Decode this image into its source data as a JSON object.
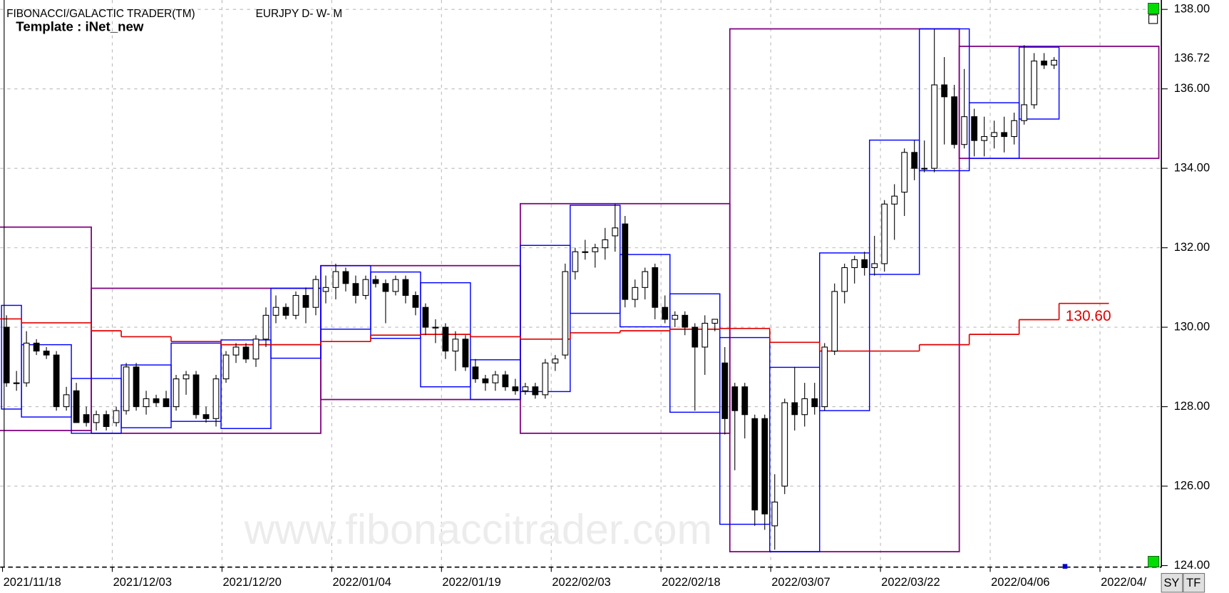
{
  "chart_data": {
    "type": "candlestick",
    "title": "FIBONACCI/GALACTIC TRADER(TM)",
    "symbol": "EURJPY D- W- M",
    "template": "Template : iNet_new",
    "watermark": "www.fibonaccitrader.com",
    "buttons": [
      "SY",
      "TF"
    ],
    "grid": true,
    "up_color": "#ffffff",
    "down_color": "#000000",
    "ylim": [
      124,
      138
    ],
    "yticks": [
      {
        "value": 124,
        "label": "124.00"
      },
      {
        "value": 126,
        "label": "126.00"
      },
      {
        "value": 128,
        "label": "128.00"
      },
      {
        "value": 130,
        "label": "130.00"
      },
      {
        "value": 132,
        "label": "132.00"
      },
      {
        "value": 134,
        "label": "134.00"
      },
      {
        "value": 136,
        "label": "136.00"
      },
      {
        "value": 138,
        "label": "138.00"
      }
    ],
    "xlim": [
      -0.63,
      115.6
    ],
    "xticks": [
      {
        "value": -0.4,
        "label": "2021/11/18"
      },
      {
        "value": 10.6,
        "label": "2021/12/03"
      },
      {
        "value": 21.6,
        "label": "2021/12/20"
      },
      {
        "value": 32.6,
        "label": "2022/01/04"
      },
      {
        "value": 43.6,
        "label": "2022/01/19"
      },
      {
        "value": 54.6,
        "label": "2022/02/03"
      },
      {
        "value": 65.6,
        "label": "2022/02/18"
      },
      {
        "value": 76.6,
        "label": "2022/03/07"
      },
      {
        "value": 87.6,
        "label": "2022/03/22"
      },
      {
        "value": 98.6,
        "label": "2022/04/06"
      },
      {
        "value": 109.6,
        "label": "2022/04/"
      }
    ],
    "open": [
      130.0,
      128.6,
      128.6,
      129.6,
      129.4,
      129.3,
      128.0,
      128.4,
      127.8,
      127.6,
      127.8,
      127.6,
      127.9,
      129.0,
      128.0,
      128.2,
      128.2,
      128.0,
      128.7,
      128.8,
      127.8,
      127.7,
      128.7,
      129.3,
      129.5,
      129.2,
      129.7,
      130.3,
      130.5,
      130.3,
      130.8,
      130.5,
      130.9,
      131.0,
      131.4,
      131.1,
      130.8,
      131.2,
      131.1,
      130.9,
      131.2,
      130.8,
      130.5,
      130.0,
      130.0,
      129.4,
      129.7,
      129.0,
      128.7,
      128.6,
      128.8,
      128.5,
      128.4,
      128.5,
      128.3,
      129.1,
      129.3,
      131.4,
      131.9,
      131.9,
      132.0,
      132.3,
      132.6,
      130.7,
      131.0,
      131.5,
      130.5,
      130.2,
      130.3,
      130.0,
      129.5,
      130.1,
      129.1,
      128.5,
      128.5,
      127.7,
      127.7,
      125.0,
      126.0,
      128.1,
      127.8,
      128.2,
      128.0,
      129.4,
      130.9,
      131.5,
      131.7,
      131.5,
      131.6,
      133.1,
      133.4,
      134.4,
      134.0,
      134.0,
      136.1,
      135.8,
      134.6,
      135.3,
      134.7,
      134.8,
      134.9,
      134.8,
      135.2,
      135.6,
      136.7,
      136.6
    ],
    "high": [
      130.3,
      128.9,
      129.9,
      129.7,
      129.5,
      129.4,
      128.5,
      128.6,
      128.0,
      127.9,
      127.9,
      128.0,
      129.1,
      129.1,
      128.4,
      128.3,
      128.4,
      128.8,
      128.9,
      128.9,
      128.0,
      128.8,
      129.4,
      129.6,
      129.6,
      129.8,
      130.5,
      130.8,
      130.6,
      130.9,
      131.0,
      131.3,
      131.3,
      131.6,
      131.5,
      131.3,
      131.3,
      131.3,
      131.2,
      131.3,
      131.3,
      130.9,
      130.6,
      130.2,
      130.1,
      129.9,
      129.8,
      129.2,
      128.8,
      128.9,
      128.9,
      128.7,
      128.6,
      128.6,
      129.2,
      129.3,
      131.6,
      132.0,
      132.2,
      132.1,
      132.5,
      133.1,
      132.8,
      131.2,
      131.5,
      131.6,
      130.8,
      130.4,
      130.4,
      130.1,
      130.3,
      130.2,
      129.5,
      128.6,
      128.6,
      127.8,
      127.8,
      126.3,
      128.2,
      129.0,
      128.6,
      128.6,
      129.6,
      131.1,
      131.6,
      131.8,
      131.9,
      132.3,
      133.2,
      133.6,
      134.5,
      134.7,
      134.7,
      137.5,
      136.8,
      136.1,
      136.5,
      135.5,
      135.3,
      135.2,
      135.3,
      135.4,
      137.1,
      136.9,
      136.9,
      136.8
    ],
    "low": [
      128.5,
      128.4,
      128.5,
      129.3,
      129.2,
      127.9,
      127.9,
      127.6,
      127.5,
      127.4,
      127.4,
      127.5,
      127.8,
      127.9,
      127.8,
      128.0,
      128.0,
      127.9,
      128.3,
      127.7,
      127.6,
      127.5,
      128.6,
      129.1,
      129.1,
      129.0,
      129.5,
      130.1,
      130.2,
      130.2,
      130.1,
      130.3,
      130.6,
      130.7,
      130.9,
      130.6,
      130.7,
      131.0,
      130.1,
      130.8,
      130.6,
      130.3,
      129.8,
      129.6,
      129.2,
      128.9,
      128.9,
      128.6,
      128.4,
      128.4,
      128.4,
      128.3,
      128.3,
      128.2,
      128.2,
      128.9,
      129.2,
      131.2,
      131.7,
      131.5,
      131.7,
      131.9,
      130.5,
      130.5,
      130.7,
      130.2,
      130.1,
      130.0,
      129.8,
      127.9,
      128.8,
      129.9,
      127.3,
      126.4,
      127.2,
      125.0,
      124.9,
      124.4,
      125.8,
      127.4,
      127.5,
      127.8,
      127.9,
      129.3,
      130.6,
      131.1,
      131.3,
      131.3,
      131.4,
      132.2,
      132.8,
      133.7,
      133.9,
      133.9,
      134.6,
      134.5,
      134.5,
      134.3,
      134.3,
      134.5,
      134.4,
      134.6,
      135.1,
      135.5,
      136.5,
      136.5
    ],
    "close": [
      128.6,
      128.6,
      129.6,
      129.4,
      129.3,
      128.0,
      128.3,
      127.6,
      127.6,
      127.8,
      127.5,
      127.9,
      129.0,
      128.0,
      128.2,
      128.1,
      128.0,
      128.7,
      128.8,
      127.8,
      127.7,
      128.7,
      129.3,
      129.5,
      129.2,
      129.7,
      130.3,
      130.5,
      130.3,
      130.8,
      130.5,
      131.2,
      131.0,
      131.4,
      131.1,
      130.8,
      131.2,
      131.1,
      130.9,
      131.2,
      130.8,
      130.5,
      130.0,
      130.0,
      129.4,
      129.7,
      129.0,
      128.7,
      128.6,
      128.8,
      128.5,
      128.4,
      128.5,
      128.3,
      129.1,
      129.2,
      131.4,
      131.9,
      131.9,
      132.0,
      132.2,
      132.5,
      130.7,
      131.0,
      131.4,
      130.5,
      130.2,
      130.3,
      130.0,
      129.5,
      130.1,
      130.2,
      127.7,
      127.9,
      127.8,
      125.4,
      125.3,
      125.6,
      128.1,
      127.8,
      128.2,
      128.0,
      129.5,
      130.9,
      131.5,
      131.7,
      131.5,
      131.6,
      133.1,
      133.3,
      134.4,
      134.0,
      134.0,
      136.1,
      135.8,
      134.6,
      135.3,
      134.7,
      134.8,
      134.9,
      134.8,
      135.2,
      135.6,
      136.7,
      136.6,
      136.72
    ],
    "weekly_ranges": {
      "color": "#0000ff",
      "start": [
        0,
        2,
        7,
        12,
        17,
        22,
        27,
        32,
        37,
        42,
        47,
        52,
        57,
        62,
        67,
        72,
        77,
        82,
        87,
        92,
        97,
        102
      ],
      "end": [
        1,
        6,
        11,
        16,
        21,
        26,
        31,
        36,
        41,
        46,
        51,
        56,
        61,
        66,
        71,
        76,
        81,
        86,
        91,
        96,
        101,
        105
      ],
      "high": [
        130.55,
        129.56,
        128.71,
        129.05,
        129.6,
        129.68,
        130.98,
        131.55,
        131.39,
        131.12,
        129.18,
        132.06,
        133.07,
        131.83,
        130.84,
        129.74,
        128.99,
        131.87,
        134.71,
        137.51,
        135.65,
        137.05
      ],
      "low": [
        127.94,
        127.74,
        127.33,
        127.47,
        127.63,
        127.45,
        129.22,
        129.95,
        129.72,
        128.5,
        128.18,
        128.38,
        130.35,
        130.01,
        127.86,
        125.04,
        124.35,
        127.9,
        131.33,
        133.94,
        134.25,
        135.24
      ]
    },
    "monthly_ranges": {
      "color": "#800080",
      "start": [
        -1,
        9,
        32,
        52,
        73,
        96
      ],
      "end": [
        8,
        31,
        51,
        72,
        95,
        115
      ],
      "high": [
        132.52,
        130.98,
        131.55,
        133.11,
        137.51,
        137.07
      ],
      "low": [
        127.4,
        127.33,
        128.18,
        127.33,
        124.35,
        134.25
      ]
    },
    "moving_average": {
      "color": "#e00000",
      "start": [
        -1,
        2,
        9,
        12,
        17,
        22,
        27,
        32,
        37,
        42,
        47,
        52,
        57,
        62,
        67,
        72,
        77,
        82,
        87,
        92,
        97,
        102,
        106
      ],
      "end": [
        1,
        8,
        11,
        16,
        21,
        26,
        31,
        36,
        41,
        46,
        51,
        56,
        61,
        66,
        71,
        76,
        81,
        86,
        91,
        96,
        101,
        105,
        110
      ],
      "values": [
        130.21,
        130.11,
        129.91,
        129.76,
        129.64,
        129.56,
        129.56,
        129.64,
        129.8,
        129.82,
        129.76,
        129.7,
        129.86,
        129.91,
        129.95,
        129.97,
        129.62,
        129.4,
        129.4,
        129.56,
        129.82,
        130.19,
        130.6
      ],
      "last_value_label": "130.60"
    }
  }
}
